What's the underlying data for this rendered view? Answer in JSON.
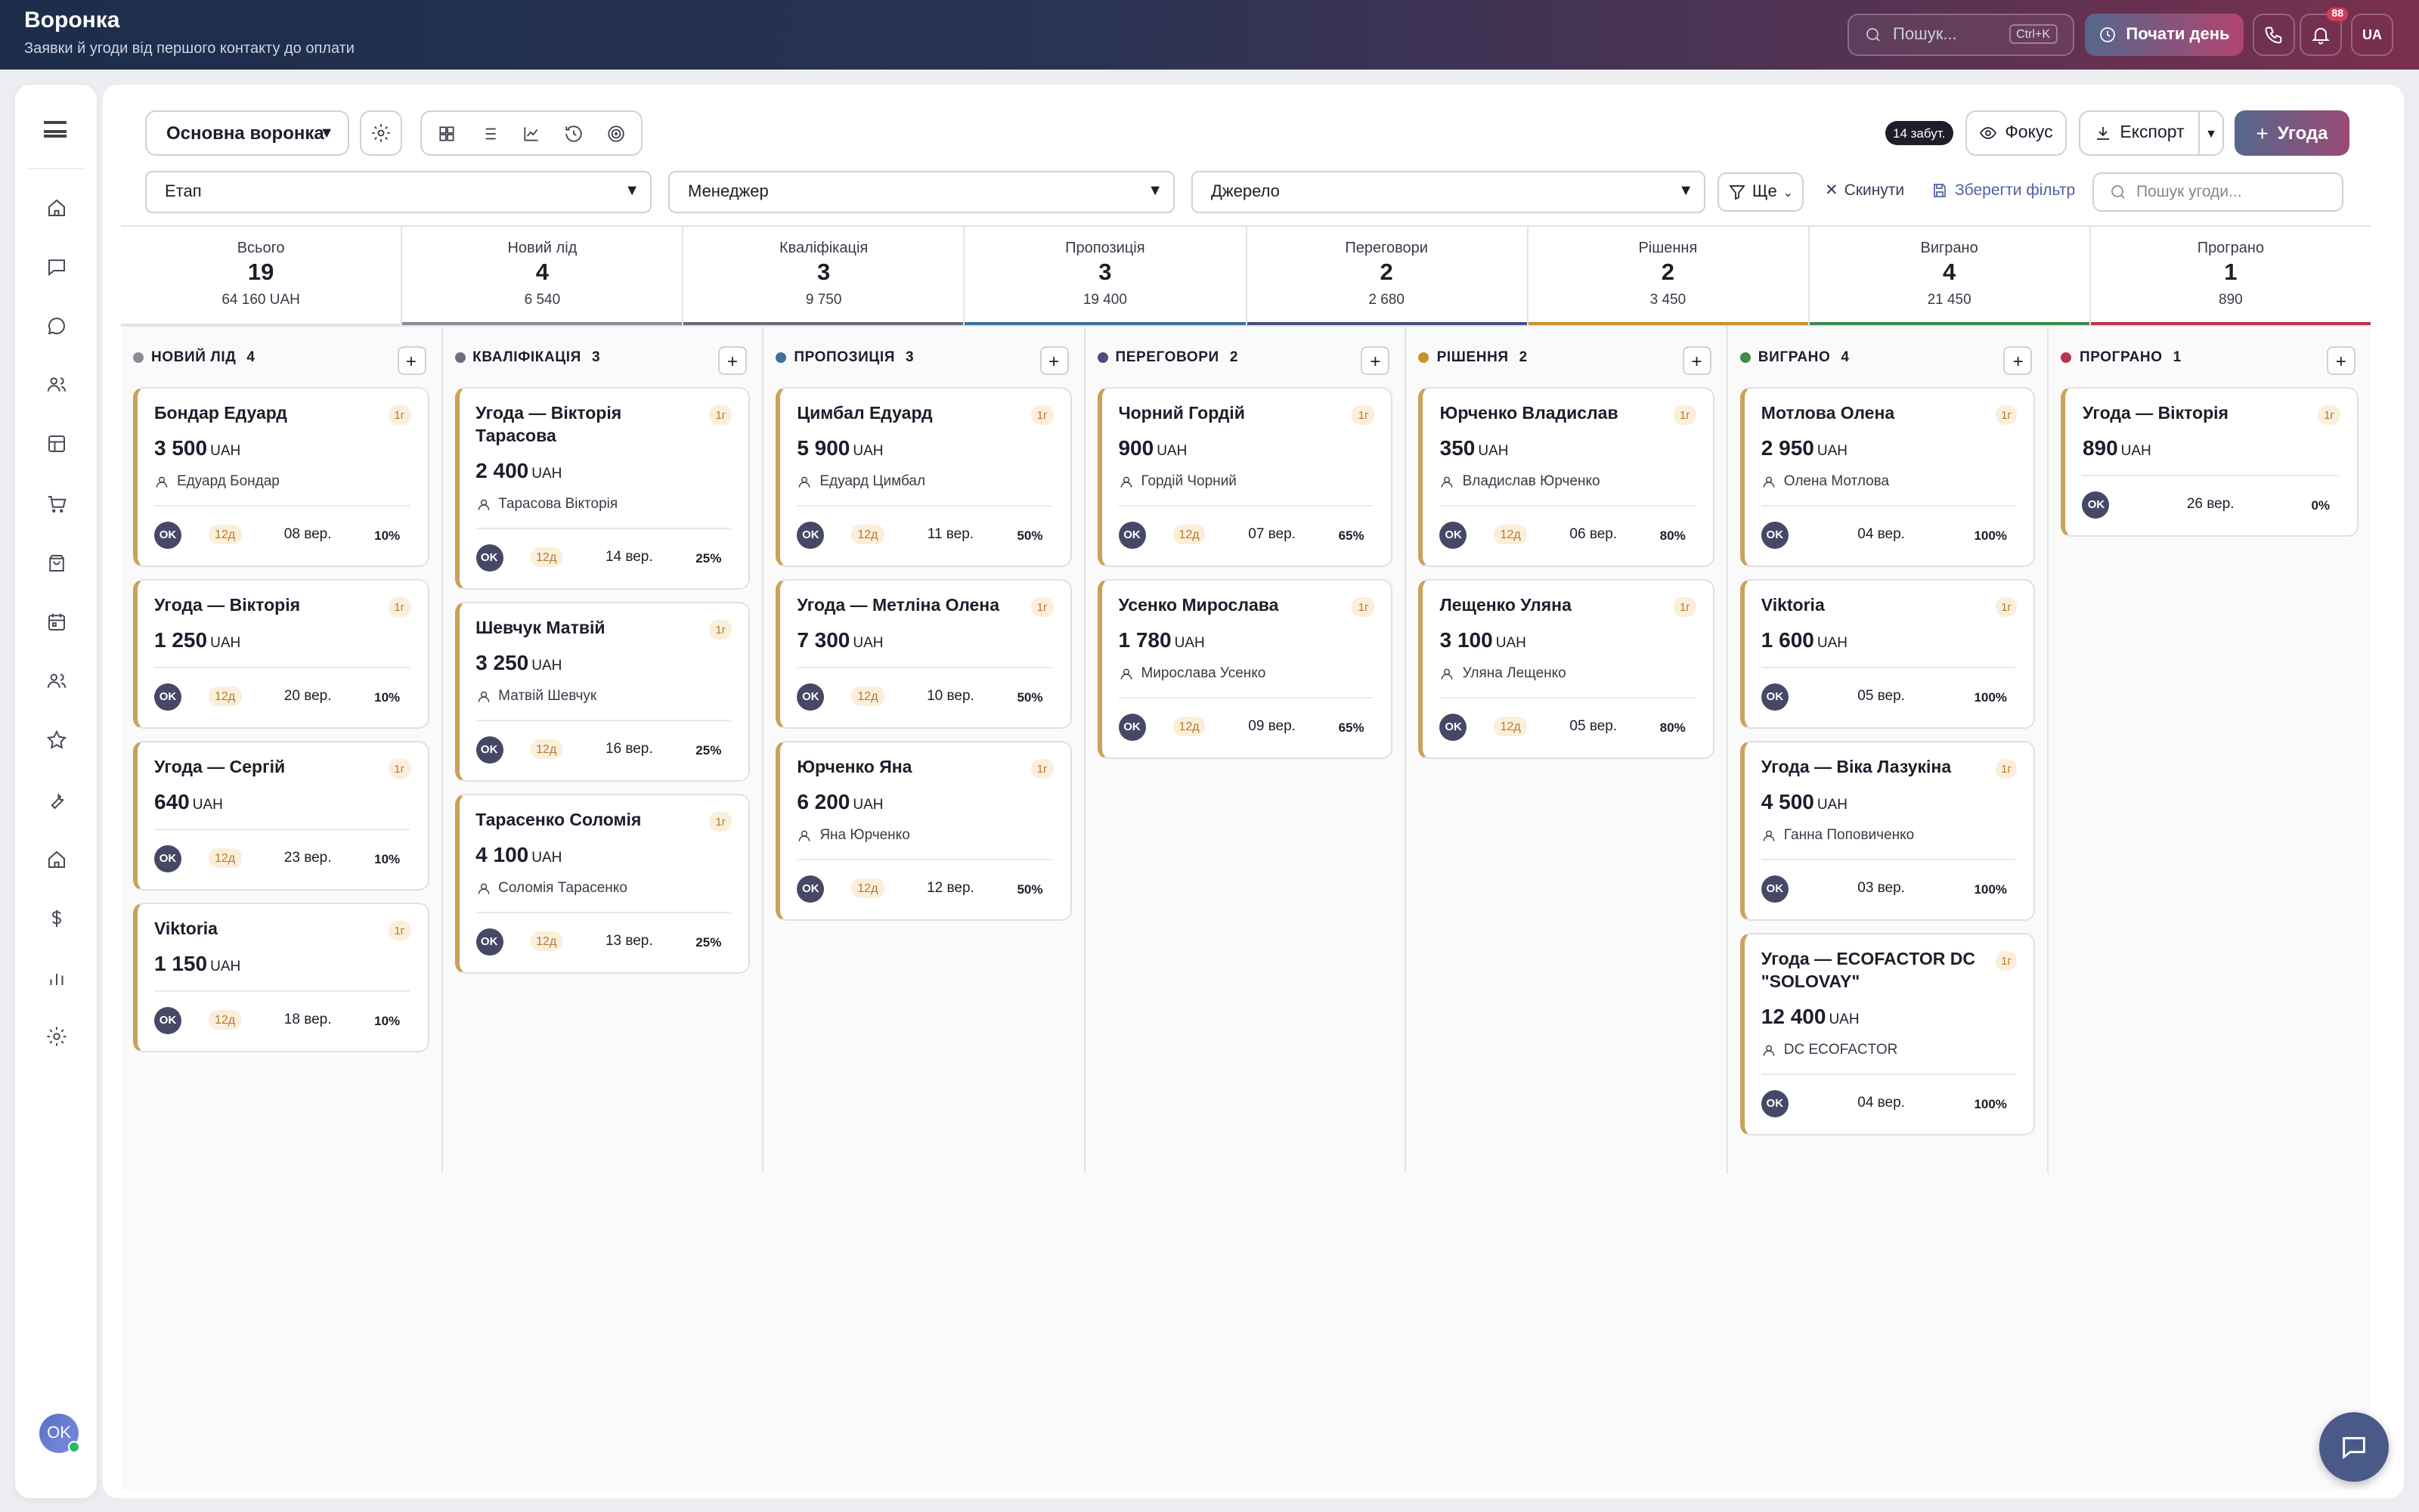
{
  "header": {
    "title": "Воронка",
    "subtitle": "Заявки й угоди від першого контакту до оплати",
    "search_placeholder": "Пошук...",
    "search_shortcut": "Ctrl+K",
    "start_day": "Почати день",
    "notifications_count": "88",
    "lang": "UA"
  },
  "sidebar": {
    "items": [
      "home-icon",
      "message-square-icon",
      "chat-bubble-icon",
      "users-icon",
      "layout-icon",
      "cart-icon",
      "shopping-bag-icon",
      "calendar-icon",
      "team-icon",
      "star-icon",
      "wrench-icon",
      "building-icon",
      "dollar-icon",
      "bar-chart-icon",
      "settings-icon"
    ],
    "user_initials": "OK"
  },
  "toolbar": {
    "pipeline": "Основна воронка",
    "forgotten": "14 забут.",
    "focus": "Фокус",
    "export": "Експорт",
    "new_deal": "Угода"
  },
  "filters": {
    "stage": "Етап",
    "manager": "Менеджер",
    "source": "Джерело",
    "more": "Ще",
    "reset": "Скинути",
    "save": "Зберегти фільтр",
    "search_placeholder": "Пошук угоди..."
  },
  "stats": [
    {
      "label": "Всього",
      "count": "19",
      "sum": "64 160 UAH",
      "color": "#e3e4ea"
    },
    {
      "label": "Новий лід",
      "count": "4",
      "sum": "6 540",
      "color": "#8a8c95"
    },
    {
      "label": "Кваліфікація",
      "count": "3",
      "sum": "9 750",
      "color": "#6c6d78"
    },
    {
      "label": "Пропозиція",
      "count": "3",
      "sum": "19 400",
      "color": "#3f6f9e"
    },
    {
      "label": "Переговори",
      "count": "2",
      "sum": "2 680",
      "color": "#4b4f7a"
    },
    {
      "label": "Рішення",
      "count": "2",
      "sum": "3 450",
      "color": "#c9912e"
    },
    {
      "label": "Виграно",
      "count": "4",
      "sum": "21 450",
      "color": "#3e8b4d"
    },
    {
      "label": "Програно",
      "count": "1",
      "sum": "890",
      "color": "#b8374d"
    }
  ],
  "columns": [
    {
      "title": "НОВИЙ ЛІД",
      "count": "4",
      "color": "#8a8c95",
      "cards": [
        {
          "name": "Бондар Едуард",
          "amount": "3 500",
          "person": "Едуард Бондар",
          "days": "12д",
          "date": "08 вер.",
          "pct": "10%"
        },
        {
          "name": "Угода — Вікторія",
          "amount": "1 250",
          "person": "",
          "days": "12д",
          "date": "20 вер.",
          "pct": "10%"
        },
        {
          "name": "Угода — Сергій",
          "amount": "640",
          "person": "",
          "days": "12д",
          "date": "23 вер.",
          "pct": "10%"
        },
        {
          "name": "Viktoria",
          "amount": "1 150",
          "person": "",
          "days": "12д",
          "date": "18 вер.",
          "pct": "10%"
        }
      ]
    },
    {
      "title": "КВАЛІФІКАЦІЯ",
      "count": "3",
      "color": "#6c6d78",
      "cards": [
        {
          "name": "Угода — Вікторія Тарасова",
          "amount": "2 400",
          "person": "Тарасова Вікторія",
          "days": "12д",
          "date": "14 вер.",
          "pct": "25%"
        },
        {
          "name": "Шевчук Матвій",
          "amount": "3 250",
          "person": "Матвій Шевчук",
          "days": "12д",
          "date": "16 вер.",
          "pct": "25%"
        },
        {
          "name": "Тарасенко Соломія",
          "amount": "4 100",
          "person": "Соломія Тарасенко",
          "days": "12д",
          "date": "13 вер.",
          "pct": "25%"
        }
      ]
    },
    {
      "title": "ПРОПОЗИЦІЯ",
      "count": "3",
      "color": "#3f6f9e",
      "cards": [
        {
          "name": "Цимбал Едуард",
          "amount": "5 900",
          "person": "Едуард Цимбал",
          "days": "12д",
          "date": "11 вер.",
          "pct": "50%"
        },
        {
          "name": "Угода — Метліна Олена",
          "amount": "7 300",
          "person": "",
          "days": "12д",
          "date": "10 вер.",
          "pct": "50%"
        },
        {
          "name": "Юрченко Яна",
          "amount": "6 200",
          "person": "Яна Юрченко",
          "days": "12д",
          "date": "12 вер.",
          "pct": "50%"
        }
      ]
    },
    {
      "title": "ПЕРЕГОВОРИ",
      "count": "2",
      "color": "#4b4f7a",
      "cards": [
        {
          "name": "Чорний Гордій",
          "amount": "900",
          "person": "Гордій Чорний",
          "days": "12д",
          "date": "07 вер.",
          "pct": "65%"
        },
        {
          "name": "Усенко Мирослава",
          "amount": "1 780",
          "person": "Мирослава Усенко",
          "days": "12д",
          "date": "09 вер.",
          "pct": "65%"
        }
      ]
    },
    {
      "title": "РІШЕННЯ",
      "count": "2",
      "color": "#c9912e",
      "cards": [
        {
          "name": "Юрченко Владислав",
          "amount": "350",
          "person": "Владислав Юрченко",
          "days": "12д",
          "date": "06 вер.",
          "pct": "80%"
        },
        {
          "name": "Лещенко Уляна",
          "amount": "3 100",
          "person": "Уляна Лещенко",
          "days": "12д",
          "date": "05 вер.",
          "pct": "80%"
        }
      ]
    },
    {
      "title": "ВИГРАНО",
      "count": "4",
      "color": "#3e8b4d",
      "cards": [
        {
          "name": "Мотлова Олена",
          "amount": "2 950",
          "person": "Олена Мотлова",
          "days": "",
          "date": "04 вер.",
          "pct": "100%"
        },
        {
          "name": "Viktoria",
          "amount": "1 600",
          "person": "",
          "days": "",
          "date": "05 вер.",
          "pct": "100%"
        },
        {
          "name": "Угода — Віка Лазукіна",
          "amount": "4 500",
          "person": "Ганна Поповиченко",
          "days": "",
          "date": "03 вер.",
          "pct": "100%"
        },
        {
          "name": "Угода — ECOFACTOR DC \"SOLOVAY\"",
          "amount": "12 400",
          "person": "DC ECOFACTOR",
          "days": "",
          "date": "04 вер.",
          "pct": "100%"
        }
      ]
    },
    {
      "title": "ПРОГРАНО",
      "count": "1",
      "color": "#b8374d",
      "cards": [
        {
          "name": "Угода — Вікторія",
          "amount": "890",
          "person": "",
          "days": "",
          "date": "26 вер.",
          "pct": "0%"
        }
      ]
    }
  ],
  "card_common": {
    "tag": "1г",
    "currency": "UAH",
    "avatar": "OK"
  }
}
